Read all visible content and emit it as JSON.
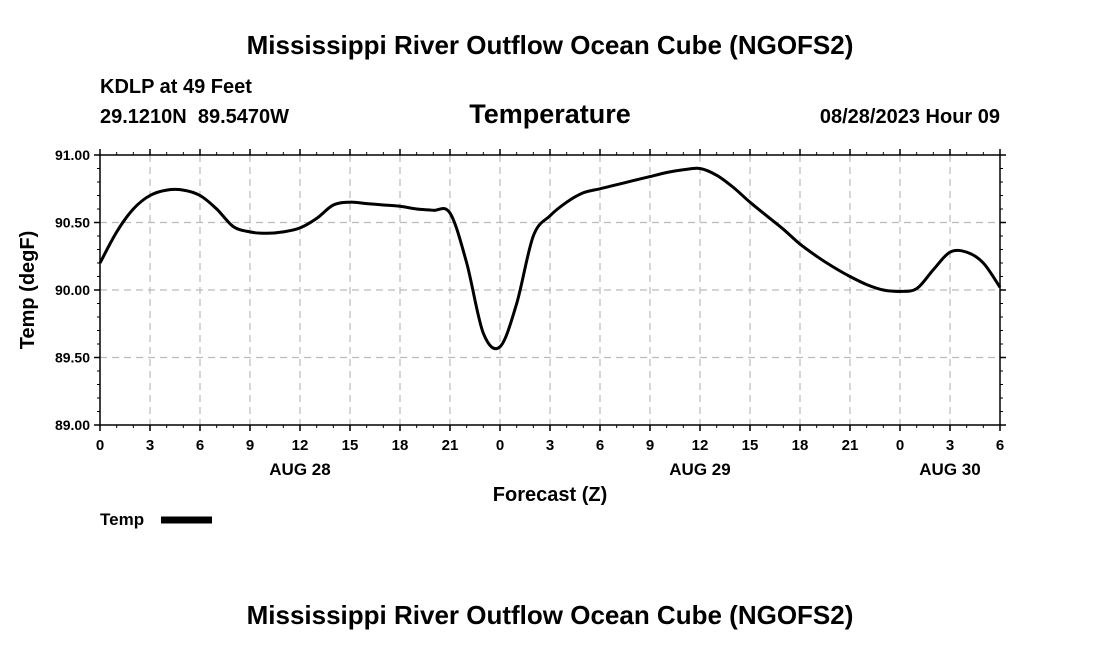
{
  "header": {
    "title": "Mississippi River Outflow Ocean Cube (NGOFS2)",
    "station": "KDLP at 49 Feet",
    "coords": "29.1210N  89.5470W",
    "datetime": "08/28/2023 Hour 09",
    "footer_title": "Mississippi River Outflow Ocean Cube (NGOFS2)"
  },
  "chart_data": {
    "type": "line",
    "title": "Temperature",
    "xlabel": "Forecast (Z)",
    "ylabel": "Temp (degF)",
    "xlim": [
      0,
      54
    ],
    "ylim": [
      89.0,
      91.0
    ],
    "grid": true,
    "y_ticks": [
      "89.00",
      "89.50",
      "90.00",
      "90.50",
      "91.00"
    ],
    "y_tick_values": [
      89.0,
      89.5,
      90.0,
      90.5,
      91.0
    ],
    "x_ticks": [
      "0",
      "3",
      "6",
      "9",
      "12",
      "15",
      "18",
      "21",
      "0",
      "3",
      "6",
      "9",
      "12",
      "15",
      "18",
      "21",
      "0",
      "3",
      "6"
    ],
    "x_tick_values": [
      0,
      3,
      6,
      9,
      12,
      15,
      18,
      21,
      24,
      27,
      30,
      33,
      36,
      39,
      42,
      45,
      48,
      51,
      54
    ],
    "date_labels": [
      {
        "label": "AUG 28",
        "x": 12
      },
      {
        "label": "AUG 29",
        "x": 36
      },
      {
        "label": "AUG 30",
        "x": 51
      }
    ],
    "legend": {
      "label": "Temp",
      "position": "bottom-left"
    },
    "series": [
      {
        "name": "Temp",
        "color": "#000000",
        "x": [
          0,
          1,
          2,
          3,
          4,
          5,
          6,
          7,
          8,
          9,
          10,
          11,
          12,
          13,
          14,
          15,
          16,
          17,
          18,
          19,
          20,
          21,
          22,
          23,
          24,
          25,
          26,
          27,
          28,
          29,
          30,
          31,
          32,
          33,
          34,
          35,
          36,
          37,
          38,
          39,
          40,
          41,
          42,
          43,
          44,
          45,
          46,
          47,
          48,
          49,
          50,
          51,
          52,
          53,
          54
        ],
        "values": [
          90.2,
          90.43,
          90.6,
          90.7,
          90.74,
          90.74,
          90.7,
          90.6,
          90.47,
          90.43,
          90.42,
          90.43,
          90.46,
          90.53,
          90.63,
          90.65,
          90.64,
          90.63,
          90.62,
          90.6,
          90.59,
          90.57,
          90.2,
          89.68,
          89.58,
          89.9,
          90.4,
          90.55,
          90.65,
          90.72,
          90.75,
          90.78,
          90.81,
          90.84,
          90.87,
          90.89,
          90.9,
          90.85,
          90.76,
          90.65,
          90.55,
          90.45,
          90.34,
          90.25,
          90.17,
          90.1,
          90.04,
          90.0,
          89.99,
          90.01,
          90.15,
          90.28,
          90.28,
          90.2,
          90.02
        ]
      }
    ]
  }
}
